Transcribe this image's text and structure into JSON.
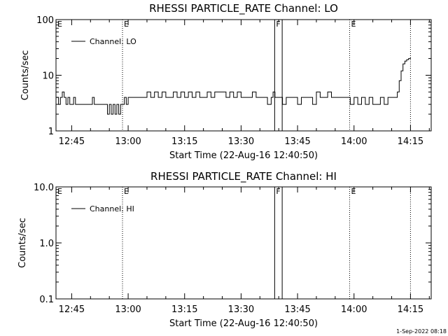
{
  "chart_data": [
    {
      "type": "line",
      "title": "RHESSI PARTICLE_RATE Channel: LO",
      "xlabel": "Start Time (22-Aug-16 12:40:50)",
      "ylabel": "Counts/sec",
      "yscale": "log",
      "ylim": [
        1,
        100
      ],
      "yticks": [
        1,
        10,
        100
      ],
      "yticklabels": [
        "1",
        "10",
        "100"
      ],
      "xlim": [
        "12:40:50",
        "14:20:30"
      ],
      "xticks": [
        "12:45",
        "13:00",
        "13:15",
        "13:30",
        "13:45",
        "14:00",
        "14:15"
      ],
      "legend": {
        "label": "Channel: LO",
        "position": "top-left"
      },
      "markers": [
        {
          "time": "12:58:30",
          "label": "E",
          "style": "dotted"
        },
        {
          "time": "13:38:55",
          "label": "F",
          "style": "solid"
        },
        {
          "time": "13:40:55",
          "label": "",
          "style": "solid"
        },
        {
          "time": "13:58:50",
          "label": "E",
          "style": "dotted"
        },
        {
          "time": "14:15:00",
          "label": "",
          "style": "dotted"
        }
      ],
      "series": [
        {
          "name": "Channel: LO",
          "x": [
            "12:41:00",
            "12:41:30",
            "12:42:00",
            "12:42:30",
            "12:43:00",
            "12:43:30",
            "12:44:00",
            "12:44:30",
            "12:45:00",
            "12:45:30",
            "12:46:00",
            "12:47:00",
            "12:48:00",
            "12:49:00",
            "12:50:00",
            "12:50:30",
            "12:51:00",
            "12:51:30",
            "12:52:00",
            "12:53:00",
            "12:54:00",
            "12:54:30",
            "12:55:00",
            "12:55:30",
            "12:56:00",
            "12:56:30",
            "12:57:00",
            "12:57:30",
            "12:58:00",
            "12:58:30",
            "12:59:00",
            "12:59:30",
            "13:00:00",
            "13:01:00",
            "13:02:00",
            "13:03:00",
            "13:04:00",
            "13:05:00",
            "13:06:00",
            "13:07:00",
            "13:08:00",
            "13:09:00",
            "13:10:00",
            "13:11:00",
            "13:12:00",
            "13:13:00",
            "13:14:00",
            "13:15:00",
            "13:16:00",
            "13:17:00",
            "13:18:00",
            "13:19:00",
            "13:20:00",
            "13:21:00",
            "13:22:00",
            "13:23:00",
            "13:24:00",
            "13:25:00",
            "13:26:00",
            "13:27:00",
            "13:28:00",
            "13:29:00",
            "13:30:00",
            "13:31:00",
            "13:32:00",
            "13:33:00",
            "13:34:00",
            "13:35:00",
            "13:36:00",
            "13:37:00",
            "13:38:00",
            "13:38:30",
            "13:39:00",
            "13:40:00",
            "13:41:00",
            "13:42:00",
            "13:43:00",
            "13:44:00",
            "13:45:00",
            "13:46:00",
            "13:47:00",
            "13:48:00",
            "13:49:00",
            "13:50:00",
            "13:51:00",
            "13:52:00",
            "13:53:00",
            "13:54:00",
            "13:55:00",
            "13:56:00",
            "13:57:00",
            "13:58:00",
            "13:59:00",
            "14:00:00",
            "14:01:00",
            "14:02:00",
            "14:03:00",
            "14:04:00",
            "14:05:00",
            "14:06:00",
            "14:07:00",
            "14:08:00",
            "14:09:00",
            "14:10:00",
            "14:11:00",
            "14:11:30",
            "14:12:00",
            "14:12:30",
            "14:13:00",
            "14:13:30",
            "14:14:00",
            "14:14:30",
            "14:15:00"
          ],
          "y": [
            4,
            3,
            4,
            5,
            4,
            3,
            4,
            3,
            3,
            4,
            3,
            3,
            3,
            3,
            3,
            4,
            3,
            3,
            3,
            3,
            3,
            2,
            3,
            2,
            3,
            2,
            3,
            2,
            3,
            3,
            4,
            3,
            4,
            4,
            4,
            4,
            4,
            5,
            4,
            5,
            4,
            5,
            4,
            4,
            5,
            4,
            5,
            4,
            5,
            4,
            5,
            4,
            4,
            5,
            4,
            5,
            5,
            5,
            4,
            5,
            4,
            5,
            4,
            4,
            4,
            5,
            4,
            4,
            4,
            3,
            4,
            5,
            4,
            4,
            3,
            4,
            4,
            4,
            3,
            4,
            4,
            4,
            3,
            5,
            4,
            4,
            5,
            4,
            4,
            4,
            4,
            4,
            3,
            4,
            3,
            4,
            3,
            4,
            3,
            3,
            4,
            3,
            4,
            4,
            4,
            5,
            8,
            12,
            16,
            18,
            19,
            20,
            21
          ]
        }
      ]
    },
    {
      "type": "line",
      "title": "RHESSI PARTICLE_RATE Channel: HI",
      "xlabel": "Start Time (22-Aug-16 12:40:50)",
      "ylabel": "Counts/sec",
      "yscale": "log",
      "ylim": [
        0.1,
        10.0
      ],
      "yticks": [
        0.1,
        1.0,
        10.0
      ],
      "yticklabels": [
        "0.1",
        "1.0",
        "10.0"
      ],
      "xlim": [
        "12:40:50",
        "14:20:30"
      ],
      "xticks": [
        "12:45",
        "13:00",
        "13:15",
        "13:30",
        "13:45",
        "14:00",
        "14:15"
      ],
      "legend": {
        "label": "Channel: HI",
        "position": "top-left"
      },
      "markers": [
        {
          "time": "12:58:30",
          "label": "E",
          "style": "dotted"
        },
        {
          "time": "13:38:55",
          "label": "F",
          "style": "solid"
        },
        {
          "time": "13:40:55",
          "label": "",
          "style": "solid"
        },
        {
          "time": "13:58:50",
          "label": "E",
          "style": "dotted"
        },
        {
          "time": "14:15:00",
          "label": "",
          "style": "dotted"
        }
      ],
      "series": [
        {
          "name": "Channel: HI",
          "x": [],
          "y": []
        }
      ]
    }
  ],
  "footer": {
    "timestamp": "1-Sep-2022 08:18"
  },
  "colors": {
    "background": "#ffffff",
    "foreground": "#000000"
  }
}
